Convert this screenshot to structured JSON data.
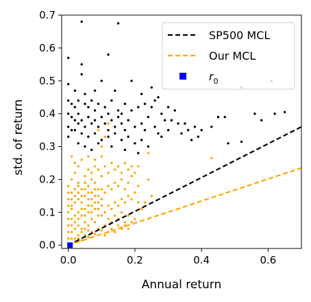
{
  "chart_data": {
    "type": "scatter",
    "xlabel": "Annual return",
    "ylabel": "std. of return",
    "xlim": [
      -0.02,
      0.7
    ],
    "ylim": [
      -0.01,
      0.7
    ],
    "xticks": [
      {
        "value": 0.0,
        "label": "0.0"
      },
      {
        "value": 0.2,
        "label": "0.2"
      },
      {
        "value": 0.4,
        "label": "0.4"
      },
      {
        "value": 0.6,
        "label": "0.6"
      }
    ],
    "yticks": [
      {
        "value": 0.0,
        "label": "0.0"
      },
      {
        "value": 0.1,
        "label": "0.1"
      },
      {
        "value": 0.2,
        "label": "0.2"
      },
      {
        "value": 0.3,
        "label": "0.3"
      },
      {
        "value": 0.4,
        "label": "0.4"
      },
      {
        "value": 0.5,
        "label": "0.5"
      },
      {
        "value": 0.6,
        "label": "0.6"
      },
      {
        "value": 0.7,
        "label": "0.7"
      }
    ],
    "grid": false,
    "legend": {
      "placement": "top-right",
      "entries": [
        {
          "label": "SP500 MCL",
          "style": "dashed-line",
          "color": "#000000"
        },
        {
          "label": " Our MCL",
          "style": "dashed-line",
          "color": "#ffa500"
        },
        {
          "label_base": "r",
          "label_sub": "0",
          "style": "square-marker",
          "color": "#0000ff"
        }
      ]
    },
    "lines": [
      {
        "name": "SP500 MCL",
        "color": "#000000",
        "x": [
          0.0,
          0.7
        ],
        "y": [
          0.0,
          0.36
        ]
      },
      {
        "name": "Our MCL",
        "color": "#ffa500",
        "x": [
          0.0,
          0.7
        ],
        "y": [
          0.0,
          0.235
        ]
      }
    ],
    "markers": [
      {
        "name": "r0",
        "color": "#0000ff",
        "shape": "square",
        "x": 0.005,
        "y": 0.0
      }
    ],
    "series": [
      {
        "color": "#000000",
        "points": [
          [
            0.04,
            0.68
          ],
          [
            0.15,
            0.675
          ],
          [
            0.0,
            0.57
          ],
          [
            0.12,
            0.58
          ],
          [
            0.04,
            0.55
          ],
          [
            0.04,
            0.52
          ],
          [
            0.1,
            0.5
          ],
          [
            0.25,
            0.48
          ],
          [
            0.61,
            0.5
          ],
          [
            0.52,
            0.48
          ],
          [
            0.0,
            0.49
          ],
          [
            0.02,
            0.47
          ],
          [
            0.05,
            0.46
          ],
          [
            0.08,
            0.47
          ],
          [
            0.14,
            0.47
          ],
          [
            0.19,
            0.5
          ],
          [
            0.22,
            0.46
          ],
          [
            0.27,
            0.45
          ],
          [
            0.3,
            0.42
          ],
          [
            0.32,
            0.41
          ],
          [
            0.35,
            0.37
          ],
          [
            0.38,
            0.36
          ],
          [
            0.4,
            0.35
          ],
          [
            0.43,
            0.36
          ],
          [
            0.45,
            0.39
          ],
          [
            0.47,
            0.39
          ],
          [
            0.48,
            0.31
          ],
          [
            0.52,
            0.315
          ],
          [
            0.56,
            0.4
          ],
          [
            0.58,
            0.38
          ],
          [
            0.62,
            0.4
          ],
          [
            0.65,
            0.405
          ],
          [
            0.0,
            0.44
          ],
          [
            0.01,
            0.43
          ],
          [
            0.02,
            0.42
          ],
          [
            0.03,
            0.44
          ],
          [
            0.05,
            0.43
          ],
          [
            0.06,
            0.42
          ],
          [
            0.07,
            0.44
          ],
          [
            0.09,
            0.43
          ],
          [
            0.11,
            0.42
          ],
          [
            0.13,
            0.44
          ],
          [
            0.15,
            0.41
          ],
          [
            0.17,
            0.43
          ],
          [
            0.19,
            0.41
          ],
          [
            0.21,
            0.42
          ],
          [
            0.23,
            0.43
          ],
          [
            0.25,
            0.42
          ],
          [
            0.28,
            0.4
          ],
          [
            0.31,
            0.38
          ],
          [
            0.0,
            0.4
          ],
          [
            0.01,
            0.39
          ],
          [
            0.02,
            0.38
          ],
          [
            0.03,
            0.37
          ],
          [
            0.04,
            0.38
          ],
          [
            0.05,
            0.36
          ],
          [
            0.06,
            0.39
          ],
          [
            0.07,
            0.37
          ],
          [
            0.08,
            0.38
          ],
          [
            0.09,
            0.36
          ],
          [
            0.1,
            0.39
          ],
          [
            0.11,
            0.37
          ],
          [
            0.12,
            0.35
          ],
          [
            0.13,
            0.38
          ],
          [
            0.14,
            0.36
          ],
          [
            0.15,
            0.39
          ],
          [
            0.16,
            0.37
          ],
          [
            0.17,
            0.35
          ],
          [
            0.18,
            0.38
          ],
          [
            0.2,
            0.36
          ],
          [
            0.22,
            0.37
          ],
          [
            0.24,
            0.39
          ],
          [
            0.26,
            0.36
          ],
          [
            0.29,
            0.38
          ],
          [
            0.33,
            0.37
          ],
          [
            0.36,
            0.35
          ],
          [
            0.39,
            0.33
          ],
          [
            0.02,
            0.35
          ],
          [
            0.04,
            0.34
          ],
          [
            0.06,
            0.33
          ],
          [
            0.08,
            0.34
          ],
          [
            0.1,
            0.32
          ],
          [
            0.12,
            0.33
          ],
          [
            0.14,
            0.34
          ],
          [
            0.16,
            0.32
          ],
          [
            0.18,
            0.33
          ],
          [
            0.2,
            0.31
          ],
          [
            0.22,
            0.32
          ],
          [
            0.24,
            0.3
          ],
          [
            0.28,
            0.33
          ],
          [
            0.0,
            0.33
          ],
          [
            0.03,
            0.31
          ],
          [
            0.05,
            0.3
          ],
          [
            0.07,
            0.29
          ],
          [
            0.09,
            0.31
          ],
          [
            0.13,
            0.3
          ],
          [
            0.17,
            0.29
          ],
          [
            0.21,
            0.28
          ],
          [
            0.23,
            0.35
          ],
          [
            0.27,
            0.34
          ],
          [
            0.34,
            0.34
          ],
          [
            0.37,
            0.32
          ],
          [
            0.0,
            0.36
          ],
          [
            0.01,
            0.35
          ],
          [
            0.03,
            0.4
          ],
          [
            0.08,
            0.41
          ],
          [
            0.12,
            0.4
          ],
          [
            0.16,
            0.4
          ],
          [
            0.26,
            0.44
          ],
          [
            0.3,
            0.35
          ]
        ]
      },
      {
        "color": "#ffa500",
        "points": [
          [
            0.01,
            0.005
          ],
          [
            0.02,
            0.01
          ],
          [
            0.03,
            0.02
          ],
          [
            0.04,
            0.015
          ],
          [
            0.05,
            0.03
          ],
          [
            0.06,
            0.025
          ],
          [
            0.07,
            0.04
          ],
          [
            0.08,
            0.035
          ],
          [
            0.09,
            0.05
          ],
          [
            0.1,
            0.045
          ],
          [
            0.0,
            0.02
          ],
          [
            0.01,
            0.04
          ],
          [
            0.02,
            0.05
          ],
          [
            0.03,
            0.06
          ],
          [
            0.04,
            0.05
          ],
          [
            0.05,
            0.07
          ],
          [
            0.06,
            0.06
          ],
          [
            0.07,
            0.08
          ],
          [
            0.08,
            0.07
          ],
          [
            0.09,
            0.09
          ],
          [
            0.0,
            0.06
          ],
          [
            0.01,
            0.08
          ],
          [
            0.02,
            0.09
          ],
          [
            0.03,
            0.1
          ],
          [
            0.04,
            0.09
          ],
          [
            0.05,
            0.11
          ],
          [
            0.06,
            0.1
          ],
          [
            0.07,
            0.12
          ],
          [
            0.08,
            0.11
          ],
          [
            0.09,
            0.13
          ],
          [
            0.0,
            0.1
          ],
          [
            0.01,
            0.12
          ],
          [
            0.02,
            0.13
          ],
          [
            0.03,
            0.14
          ],
          [
            0.04,
            0.13
          ],
          [
            0.05,
            0.15
          ],
          [
            0.06,
            0.14
          ],
          [
            0.07,
            0.16
          ],
          [
            0.08,
            0.15
          ],
          [
            0.09,
            0.17
          ],
          [
            0.0,
            0.14
          ],
          [
            0.01,
            0.16
          ],
          [
            0.02,
            0.17
          ],
          [
            0.03,
            0.18
          ],
          [
            0.04,
            0.17
          ],
          [
            0.05,
            0.19
          ],
          [
            0.06,
            0.18
          ],
          [
            0.07,
            0.2
          ],
          [
            0.08,
            0.19
          ],
          [
            0.1,
            0.21
          ],
          [
            0.11,
            0.1
          ],
          [
            0.12,
            0.12
          ],
          [
            0.13,
            0.11
          ],
          [
            0.14,
            0.13
          ],
          [
            0.15,
            0.12
          ],
          [
            0.16,
            0.14
          ],
          [
            0.17,
            0.13
          ],
          [
            0.18,
            0.15
          ],
          [
            0.19,
            0.14
          ],
          [
            0.2,
            0.16
          ],
          [
            0.11,
            0.06
          ],
          [
            0.12,
            0.08
          ],
          [
            0.13,
            0.07
          ],
          [
            0.14,
            0.09
          ],
          [
            0.15,
            0.08
          ],
          [
            0.16,
            0.1
          ],
          [
            0.17,
            0.06
          ],
          [
            0.18,
            0.09
          ],
          [
            0.19,
            0.07
          ],
          [
            0.2,
            0.08
          ],
          [
            0.11,
            0.16
          ],
          [
            0.12,
            0.18
          ],
          [
            0.13,
            0.17
          ],
          [
            0.14,
            0.19
          ],
          [
            0.15,
            0.18
          ],
          [
            0.16,
            0.2
          ],
          [
            0.17,
            0.17
          ],
          [
            0.18,
            0.19
          ],
          [
            0.19,
            0.21
          ],
          [
            0.21,
            0.18
          ],
          [
            0.11,
            0.03
          ],
          [
            0.12,
            0.04
          ],
          [
            0.13,
            0.05
          ],
          [
            0.14,
            0.04
          ],
          [
            0.15,
            0.06
          ],
          [
            0.16,
            0.05
          ],
          [
            0.17,
            0.07
          ],
          [
            0.18,
            0.05
          ],
          [
            0.22,
            0.11
          ],
          [
            0.23,
            0.13
          ],
          [
            0.0,
            0.18
          ],
          [
            0.01,
            0.2
          ],
          [
            0.02,
            0.22
          ],
          [
            0.03,
            0.19
          ],
          [
            0.05,
            0.21
          ],
          [
            0.06,
            0.23
          ],
          [
            0.07,
            0.22
          ],
          [
            0.08,
            0.24
          ],
          [
            0.09,
            0.23
          ],
          [
            0.11,
            0.24
          ],
          [
            0.12,
            0.22
          ],
          [
            0.13,
            0.25
          ],
          [
            0.14,
            0.23
          ],
          [
            0.15,
            0.24
          ],
          [
            0.16,
            0.22
          ],
          [
            0.17,
            0.25
          ],
          [
            0.18,
            0.23
          ],
          [
            0.19,
            0.24
          ],
          [
            0.2,
            0.22
          ],
          [
            0.21,
            0.24
          ],
          [
            0.01,
            0.27
          ],
          [
            0.02,
            0.25
          ],
          [
            0.03,
            0.24
          ],
          [
            0.04,
            0.26
          ],
          [
            0.06,
            0.27
          ],
          [
            0.08,
            0.26
          ],
          [
            0.1,
            0.27
          ],
          [
            0.01,
            0.11
          ],
          [
            0.02,
            0.07
          ],
          [
            0.03,
            0.08
          ],
          [
            0.04,
            0.11
          ],
          [
            0.05,
            0.09
          ],
          [
            0.06,
            0.12
          ],
          [
            0.07,
            0.1
          ],
          [
            0.08,
            0.13
          ],
          [
            0.09,
            0.11
          ],
          [
            0.1,
            0.14
          ],
          [
            0.1,
            0.09
          ],
          [
            0.1,
            0.12
          ],
          [
            0.1,
            0.17
          ],
          [
            0.02,
            0.02
          ],
          [
            0.03,
            0.03
          ],
          [
            0.04,
            0.04
          ],
          [
            0.05,
            0.05
          ],
          [
            0.06,
            0.045
          ],
          [
            0.02,
            0.15
          ],
          [
            0.03,
            0.16
          ],
          [
            0.04,
            0.15
          ],
          [
            0.05,
            0.17
          ],
          [
            0.06,
            0.16
          ],
          [
            0.07,
            0.14
          ],
          [
            0.08,
            0.17
          ],
          [
            0.09,
            0.15
          ],
          [
            0.0,
            0.08
          ],
          [
            0.0,
            0.12
          ],
          [
            0.0,
            0.16
          ],
          [
            0.0,
            0.04
          ],
          [
            0.01,
            0.02
          ],
          [
            0.01,
            0.06
          ],
          [
            0.01,
            0.14
          ],
          [
            0.43,
            0.265
          ],
          [
            0.24,
            0.28
          ],
          [
            0.6,
            0.495
          ],
          [
            0.11,
            0.33
          ],
          [
            0.09,
            0.35
          ],
          [
            0.12,
            0.37
          ],
          [
            0.1,
            0.3
          ],
          [
            0.24,
            0.2
          ],
          [
            0.25,
            0.15
          ],
          [
            0.21,
            0.13
          ]
        ]
      }
    ]
  }
}
